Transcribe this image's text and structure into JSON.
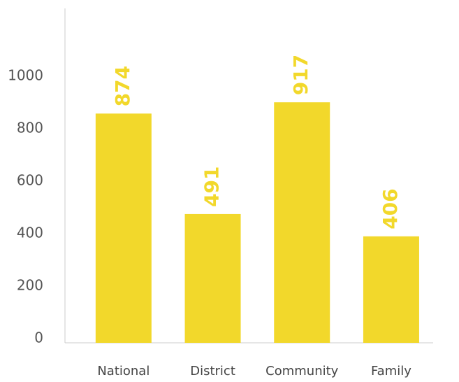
{
  "chart_data": {
    "type": "bar",
    "categories": [
      "National",
      "District",
      "Community",
      "Family"
    ],
    "values": [
      874,
      491,
      917,
      406
    ],
    "color": "#f2d82b",
    "ylim": [
      0,
      1275
    ],
    "yticks": [
      0,
      200,
      400,
      600,
      800,
      1000
    ],
    "grid": false
  }
}
